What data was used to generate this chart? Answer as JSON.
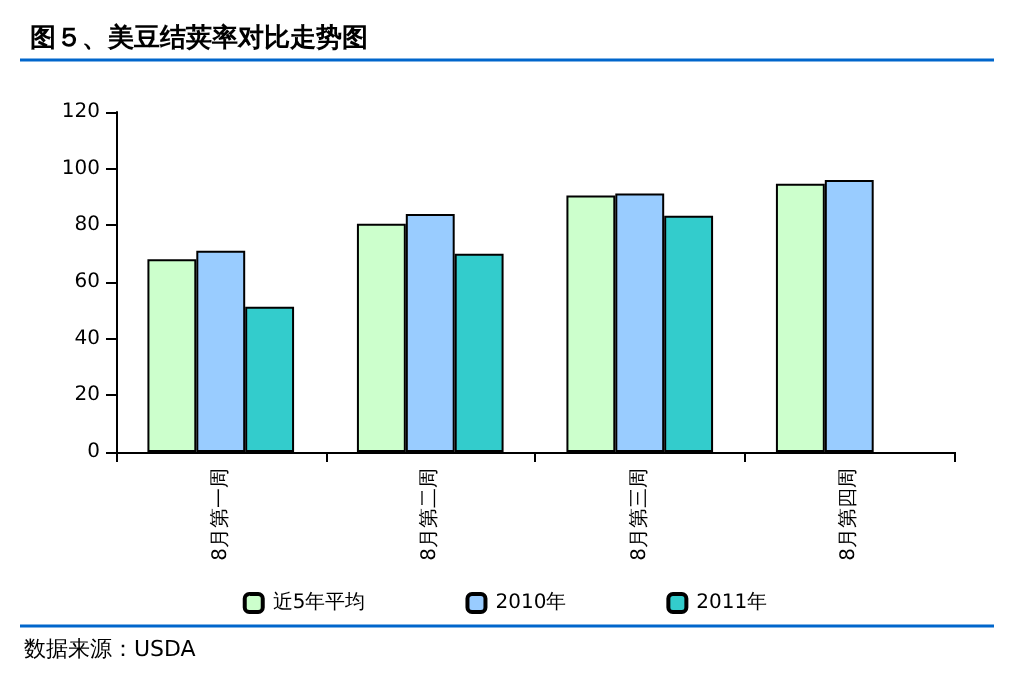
{
  "chart_data": {
    "type": "bar",
    "title": "图５、美豆结荚率对比走势图",
    "categories": [
      "8月第一周",
      "8月第二周",
      "8月第三周",
      "8月第四周"
    ],
    "series": [
      {
        "name": "近5年平均",
        "color": "#ccffcc",
        "values": [
          68,
          80.6,
          90.5,
          94.7
        ]
      },
      {
        "name": "2010年",
        "color": "#99ccff",
        "values": [
          71,
          84,
          91.2,
          96
        ]
      },
      {
        "name": "2011年",
        "color": "#33cccc",
        "values": [
          51.3,
          70,
          83.4,
          null
        ]
      }
    ],
    "ylim": [
      0,
      120
    ],
    "yticks": [
      0,
      20,
      40,
      60,
      80,
      100,
      120
    ],
    "grid": false,
    "legend": "bottom",
    "annotations": [
      "数据来源：USDA"
    ]
  }
}
